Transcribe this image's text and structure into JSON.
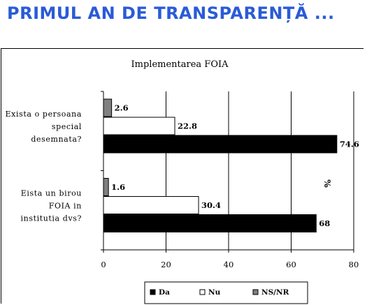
{
  "slide": {
    "title": "PRIMUL AN DE TRANSPARENȚĂ ..."
  },
  "chart_data": {
    "type": "bar",
    "orientation": "horizontal",
    "title": "Implementarea FOIA",
    "xlabel": "",
    "ylabel": "%",
    "xlim": [
      0,
      80
    ],
    "xticks": [
      0,
      20,
      40,
      60,
      80
    ],
    "grid": true,
    "legend_position": "bottom",
    "categories": [
      [
        "Exista o persoana",
        "special",
        "desemnata?"
      ],
      [
        "Eista un birou",
        "FOIA in",
        "institutia dvs?"
      ]
    ],
    "series": [
      {
        "name": "NS/NR",
        "values": [
          2.6,
          1.6
        ],
        "labels": [
          "2.6",
          "1.6"
        ],
        "color": "#808080"
      },
      {
        "name": "Nu",
        "values": [
          22.8,
          30.4
        ],
        "labels": [
          "22.8",
          "30.4"
        ],
        "color": "#ffffff"
      },
      {
        "name": "Da",
        "values": [
          74.6,
          68
        ],
        "labels": [
          "74.6",
          "68"
        ],
        "color": "#000000"
      }
    ],
    "legend": [
      {
        "name": "Da",
        "color": "#000000"
      },
      {
        "name": "Nu",
        "color": "#ffffff"
      },
      {
        "name": "NS/NR",
        "color": "#808080"
      }
    ]
  }
}
